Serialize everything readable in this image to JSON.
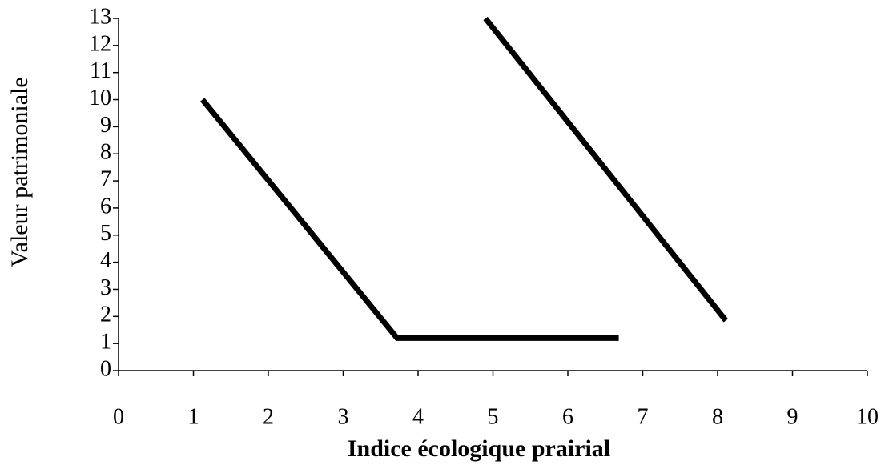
{
  "chart_data": {
    "type": "line",
    "x_label": "Indice écologique prairial",
    "y_label": "Valeur patrimoniale",
    "series": [
      {
        "color": "#000000",
        "x": [
          1.12,
          3.72,
          6.68
        ],
        "values": [
          10,
          1.2,
          1.2
        ]
      },
      {
        "color": "#000000",
        "x": [
          4.9,
          8.11
        ],
        "values": [
          13,
          1.85
        ]
      }
    ],
    "xlim": [
      0,
      10
    ],
    "xticks": [
      0,
      1,
      2,
      3,
      4,
      5,
      6,
      7,
      8,
      9,
      10
    ],
    "ylim": [
      0,
      13
    ],
    "yticks": [
      0,
      1,
      2,
      3,
      4,
      5,
      6,
      7,
      8,
      9,
      10,
      11,
      12,
      13
    ],
    "grid": false
  }
}
